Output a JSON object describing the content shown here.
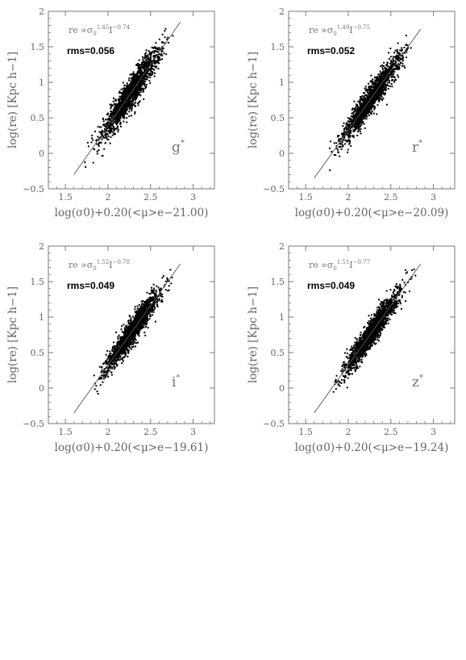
{
  "chart_data": [
    {
      "type": "scatter",
      "band_label": "g*",
      "xlabel": "log(σ0)+0.20(<μ>e−21.00)",
      "ylabel": "log(re) [Kpc h−1]",
      "xlim": [
        1.3,
        3.25
      ],
      "ylim": [
        -0.5,
        2
      ],
      "xticks": [
        1.5,
        2,
        2.5,
        3
      ],
      "yticks": [
        -0.5,
        0,
        0.5,
        1,
        1.5,
        2
      ],
      "relation": {
        "prefix": "re ∝σ",
        "sub": "0",
        "exp_sigma": "1.45",
        "mid": "I",
        "exp_I": "−0.74"
      },
      "rms": "rms=0.056",
      "fit_line": {
        "x": [
          1.6,
          2.85
        ],
        "y": [
          -0.3,
          1.85
        ]
      },
      "points": {
        "n": 1700,
        "x_center": 2.27,
        "x_spread": 0.17,
        "x_min": 1.72,
        "x_max": 2.8,
        "residual_sd": 0.11
      }
    },
    {
      "type": "scatter",
      "band_label": "r*",
      "xlabel": "log(σ0)+0.20(<μ>e−20.09)",
      "ylabel": "log(re) [Kpc h−1]",
      "xlim": [
        1.3,
        3.25
      ],
      "ylim": [
        -0.5,
        2
      ],
      "xticks": [
        1.5,
        2,
        2.5,
        3
      ],
      "yticks": [
        -0.5,
        0,
        0.5,
        1,
        1.5,
        2
      ],
      "relation": {
        "prefix": "re ∝σ",
        "sub": "0",
        "exp_sigma": "1.49",
        "mid": "I",
        "exp_I": "−0.75"
      },
      "rms": "rms=0.052",
      "fit_line": {
        "x": [
          1.6,
          2.85
        ],
        "y": [
          -0.35,
          1.75
        ]
      },
      "points": {
        "n": 1700,
        "x_center": 2.27,
        "x_spread": 0.17,
        "x_min": 1.75,
        "x_max": 2.8,
        "residual_sd": 0.1
      }
    },
    {
      "type": "scatter",
      "band_label": "i*",
      "xlabel": "log(σ0)+0.20(<μ>e−19.61)",
      "ylabel": "log(re) [Kpc h−1]",
      "xlim": [
        1.3,
        3.25
      ],
      "ylim": [
        -0.5,
        2
      ],
      "xticks": [
        1.5,
        2,
        2.5,
        3
      ],
      "yticks": [
        -0.5,
        0,
        0.5,
        1,
        1.5,
        2
      ],
      "relation": {
        "prefix": "re ∝σ",
        "sub": "0",
        "exp_sigma": "1.52",
        "mid": "I",
        "exp_I": "−0.78"
      },
      "rms": "rms=0.049",
      "fit_line": {
        "x": [
          1.6,
          2.85
        ],
        "y": [
          -0.35,
          1.75
        ]
      },
      "points": {
        "n": 1700,
        "x_center": 2.28,
        "x_spread": 0.16,
        "x_min": 1.82,
        "x_max": 2.8,
        "residual_sd": 0.095
      }
    },
    {
      "type": "scatter",
      "band_label": "z*",
      "xlabel": "log(σ0)+0.20(<μ>e−19.24)",
      "ylabel": "log(re) [Kpc h−1]",
      "xlim": [
        1.3,
        3.25
      ],
      "ylim": [
        -0.5,
        2
      ],
      "xticks": [
        1.5,
        2,
        2.5,
        3
      ],
      "yticks": [
        -0.5,
        0,
        0.5,
        1,
        1.5,
        2
      ],
      "relation": {
        "prefix": "re ∝σ",
        "sub": "0",
        "exp_sigma": "1.51",
        "mid": "I",
        "exp_I": "−0.77"
      },
      "rms": "rms=0.049",
      "fit_line": {
        "x": [
          1.6,
          2.85
        ],
        "y": [
          -0.35,
          1.75
        ]
      },
      "points": {
        "n": 1700,
        "x_center": 2.28,
        "x_spread": 0.16,
        "x_min": 1.82,
        "x_max": 2.8,
        "residual_sd": 0.095
      }
    }
  ]
}
